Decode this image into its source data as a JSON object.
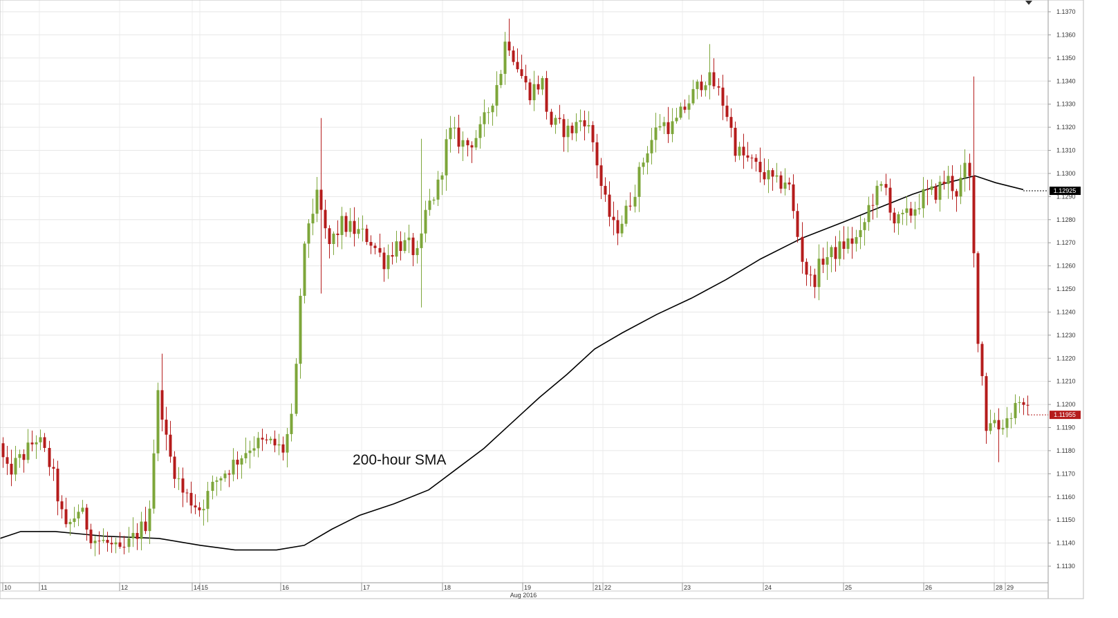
{
  "chart_data": {
    "type": "candlestick",
    "instrument_timeframe": "hourly",
    "ylim": [
      1.1125,
      1.1373
    ],
    "y_ticks": [
      "1.1130",
      "1.1140",
      "1.1150",
      "1.1160",
      "1.1170",
      "1.1180",
      "1.1190",
      "1.1200",
      "1.1210",
      "1.1220",
      "1.1230",
      "1.1240",
      "1.1250",
      "1.1260",
      "1.1270",
      "1.1280",
      "1.1290",
      "1.1300",
      "1.1310",
      "1.1320",
      "1.1330",
      "1.1340",
      "1.1350",
      "1.1360",
      "1.1370"
    ],
    "x_day_labels": [
      "10",
      "11",
      "12",
      "14",
      "15",
      "16",
      "17",
      "18",
      "19",
      "21",
      "22",
      "23",
      "24",
      "25",
      "26",
      "28",
      "29"
    ],
    "x_month_label": "Aug 2016",
    "grid": true,
    "colors": {
      "up": "#7da63a",
      "down": "#b51c1c",
      "sma": "#000000",
      "grid": "#e6e6e6",
      "sma_tag": "#000000",
      "last_tag": "#b51c1c"
    },
    "annotation": {
      "text": "200-hour SMA"
    },
    "price_tags": {
      "sma_value": "1.12925",
      "last_value": "1.11955"
    },
    "sma_200": [
      [
        0,
        1.1142
      ],
      [
        30,
        1.1145
      ],
      [
        80,
        1.1145
      ],
      [
        150,
        1.1143
      ],
      [
        230,
        1.1142
      ],
      [
        290,
        1.1139
      ],
      [
        340,
        1.1137
      ],
      [
        400,
        1.1137
      ],
      [
        440,
        1.1139
      ],
      [
        480,
        1.1146
      ],
      [
        520,
        1.1152
      ],
      [
        570,
        1.1157
      ],
      [
        620,
        1.1163
      ],
      [
        660,
        1.1172
      ],
      [
        700,
        1.1181
      ],
      [
        740,
        1.1192
      ],
      [
        780,
        1.1203
      ],
      [
        820,
        1.1213
      ],
      [
        860,
        1.1224
      ],
      [
        900,
        1.1231
      ],
      [
        950,
        1.1239
      ],
      [
        1000,
        1.1246
      ],
      [
        1050,
        1.1254
      ],
      [
        1100,
        1.1263
      ],
      [
        1160,
        1.1272
      ],
      [
        1220,
        1.1279
      ],
      [
        1270,
        1.1285
      ],
      [
        1320,
        1.1291
      ],
      [
        1370,
        1.1296
      ],
      [
        1410,
        1.1299
      ],
      [
        1440,
        1.1296
      ],
      [
        1480,
        1.1293
      ]
    ],
    "anchors": [
      [
        0,
        1.1188
      ],
      [
        15,
        1.117
      ],
      [
        40,
        1.1178
      ],
      [
        60,
        1.1186
      ],
      [
        80,
        1.1172
      ],
      [
        100,
        1.1145
      ],
      [
        120,
        1.1155
      ],
      [
        140,
        1.1142
      ],
      [
        160,
        1.114
      ],
      [
        180,
        1.1135
      ],
      [
        200,
        1.1143
      ],
      [
        220,
        1.115
      ],
      [
        235,
        1.1208
      ],
      [
        248,
        1.118
      ],
      [
        270,
        1.1162
      ],
      [
        295,
        1.1155
      ],
      [
        320,
        1.1168
      ],
      [
        345,
        1.1175
      ],
      [
        370,
        1.1183
      ],
      [
        400,
        1.1183
      ],
      [
        415,
        1.118
      ],
      [
        430,
        1.1195
      ],
      [
        440,
        1.125
      ],
      [
        450,
        1.1278
      ],
      [
        465,
        1.129
      ],
      [
        480,
        1.1268
      ],
      [
        500,
        1.1278
      ],
      [
        520,
        1.1275
      ],
      [
        540,
        1.1272
      ],
      [
        560,
        1.1262
      ],
      [
        580,
        1.127
      ],
      [
        600,
        1.1268
      ],
      [
        612,
        1.1263
      ],
      [
        620,
        1.1282
      ],
      [
        640,
        1.1295
      ],
      [
        655,
        1.1318
      ],
      [
        680,
        1.1312
      ],
      [
        700,
        1.1318
      ],
      [
        715,
        1.133
      ],
      [
        730,
        1.1345
      ],
      [
        738,
        1.136
      ],
      [
        750,
        1.135
      ],
      [
        770,
        1.1335
      ],
      [
        790,
        1.134
      ],
      [
        800,
        1.1322
      ],
      [
        830,
        1.1318
      ],
      [
        850,
        1.1325
      ],
      [
        865,
        1.1312
      ],
      [
        878,
        1.129
      ],
      [
        895,
        1.1275
      ],
      [
        910,
        1.1282
      ],
      [
        925,
        1.1295
      ],
      [
        940,
        1.131
      ],
      [
        960,
        1.1322
      ],
      [
        980,
        1.132
      ],
      [
        995,
        1.1328
      ],
      [
        1010,
        1.1335
      ],
      [
        1025,
        1.1342
      ],
      [
        1040,
        1.1338
      ],
      [
        1055,
        1.1328
      ],
      [
        1070,
        1.131
      ],
      [
        1090,
        1.1305
      ],
      [
        1110,
        1.13
      ],
      [
        1130,
        1.1295
      ],
      [
        1145,
        1.1298
      ],
      [
        1155,
        1.128
      ],
      [
        1168,
        1.126
      ],
      [
        1180,
        1.1252
      ],
      [
        1195,
        1.1263
      ],
      [
        1210,
        1.1265
      ],
      [
        1230,
        1.127
      ],
      [
        1250,
        1.1272
      ],
      [
        1265,
        1.1288
      ],
      [
        1285,
        1.1295
      ],
      [
        1300,
        1.1278
      ],
      [
        1320,
        1.1282
      ],
      [
        1340,
        1.129
      ],
      [
        1360,
        1.1292
      ],
      [
        1375,
        1.1298
      ],
      [
        1390,
        1.1292
      ],
      [
        1400,
        1.13
      ],
      [
        1406,
        1.1305
      ],
      [
        1412,
        1.1275
      ],
      [
        1418,
        1.1235
      ],
      [
        1425,
        1.1215
      ],
      [
        1432,
        1.119
      ],
      [
        1440,
        1.1195
      ],
      [
        1450,
        1.119
      ],
      [
        1465,
        1.1195
      ],
      [
        1480,
        1.1203
      ],
      [
        1487,
        1.1196
      ]
    ],
    "spikes": [
      [
        465,
        1.1324,
        1.1248
      ],
      [
        612,
        1.1315,
        1.1242
      ],
      [
        1026,
        1.1356,
        0
      ],
      [
        1408,
        1.1342,
        0
      ],
      [
        735,
        1.1367,
        0
      ],
      [
        235,
        1.1222,
        0
      ],
      [
        1442,
        0,
        1.1175
      ],
      [
        1178,
        0,
        1.1246
      ]
    ]
  }
}
